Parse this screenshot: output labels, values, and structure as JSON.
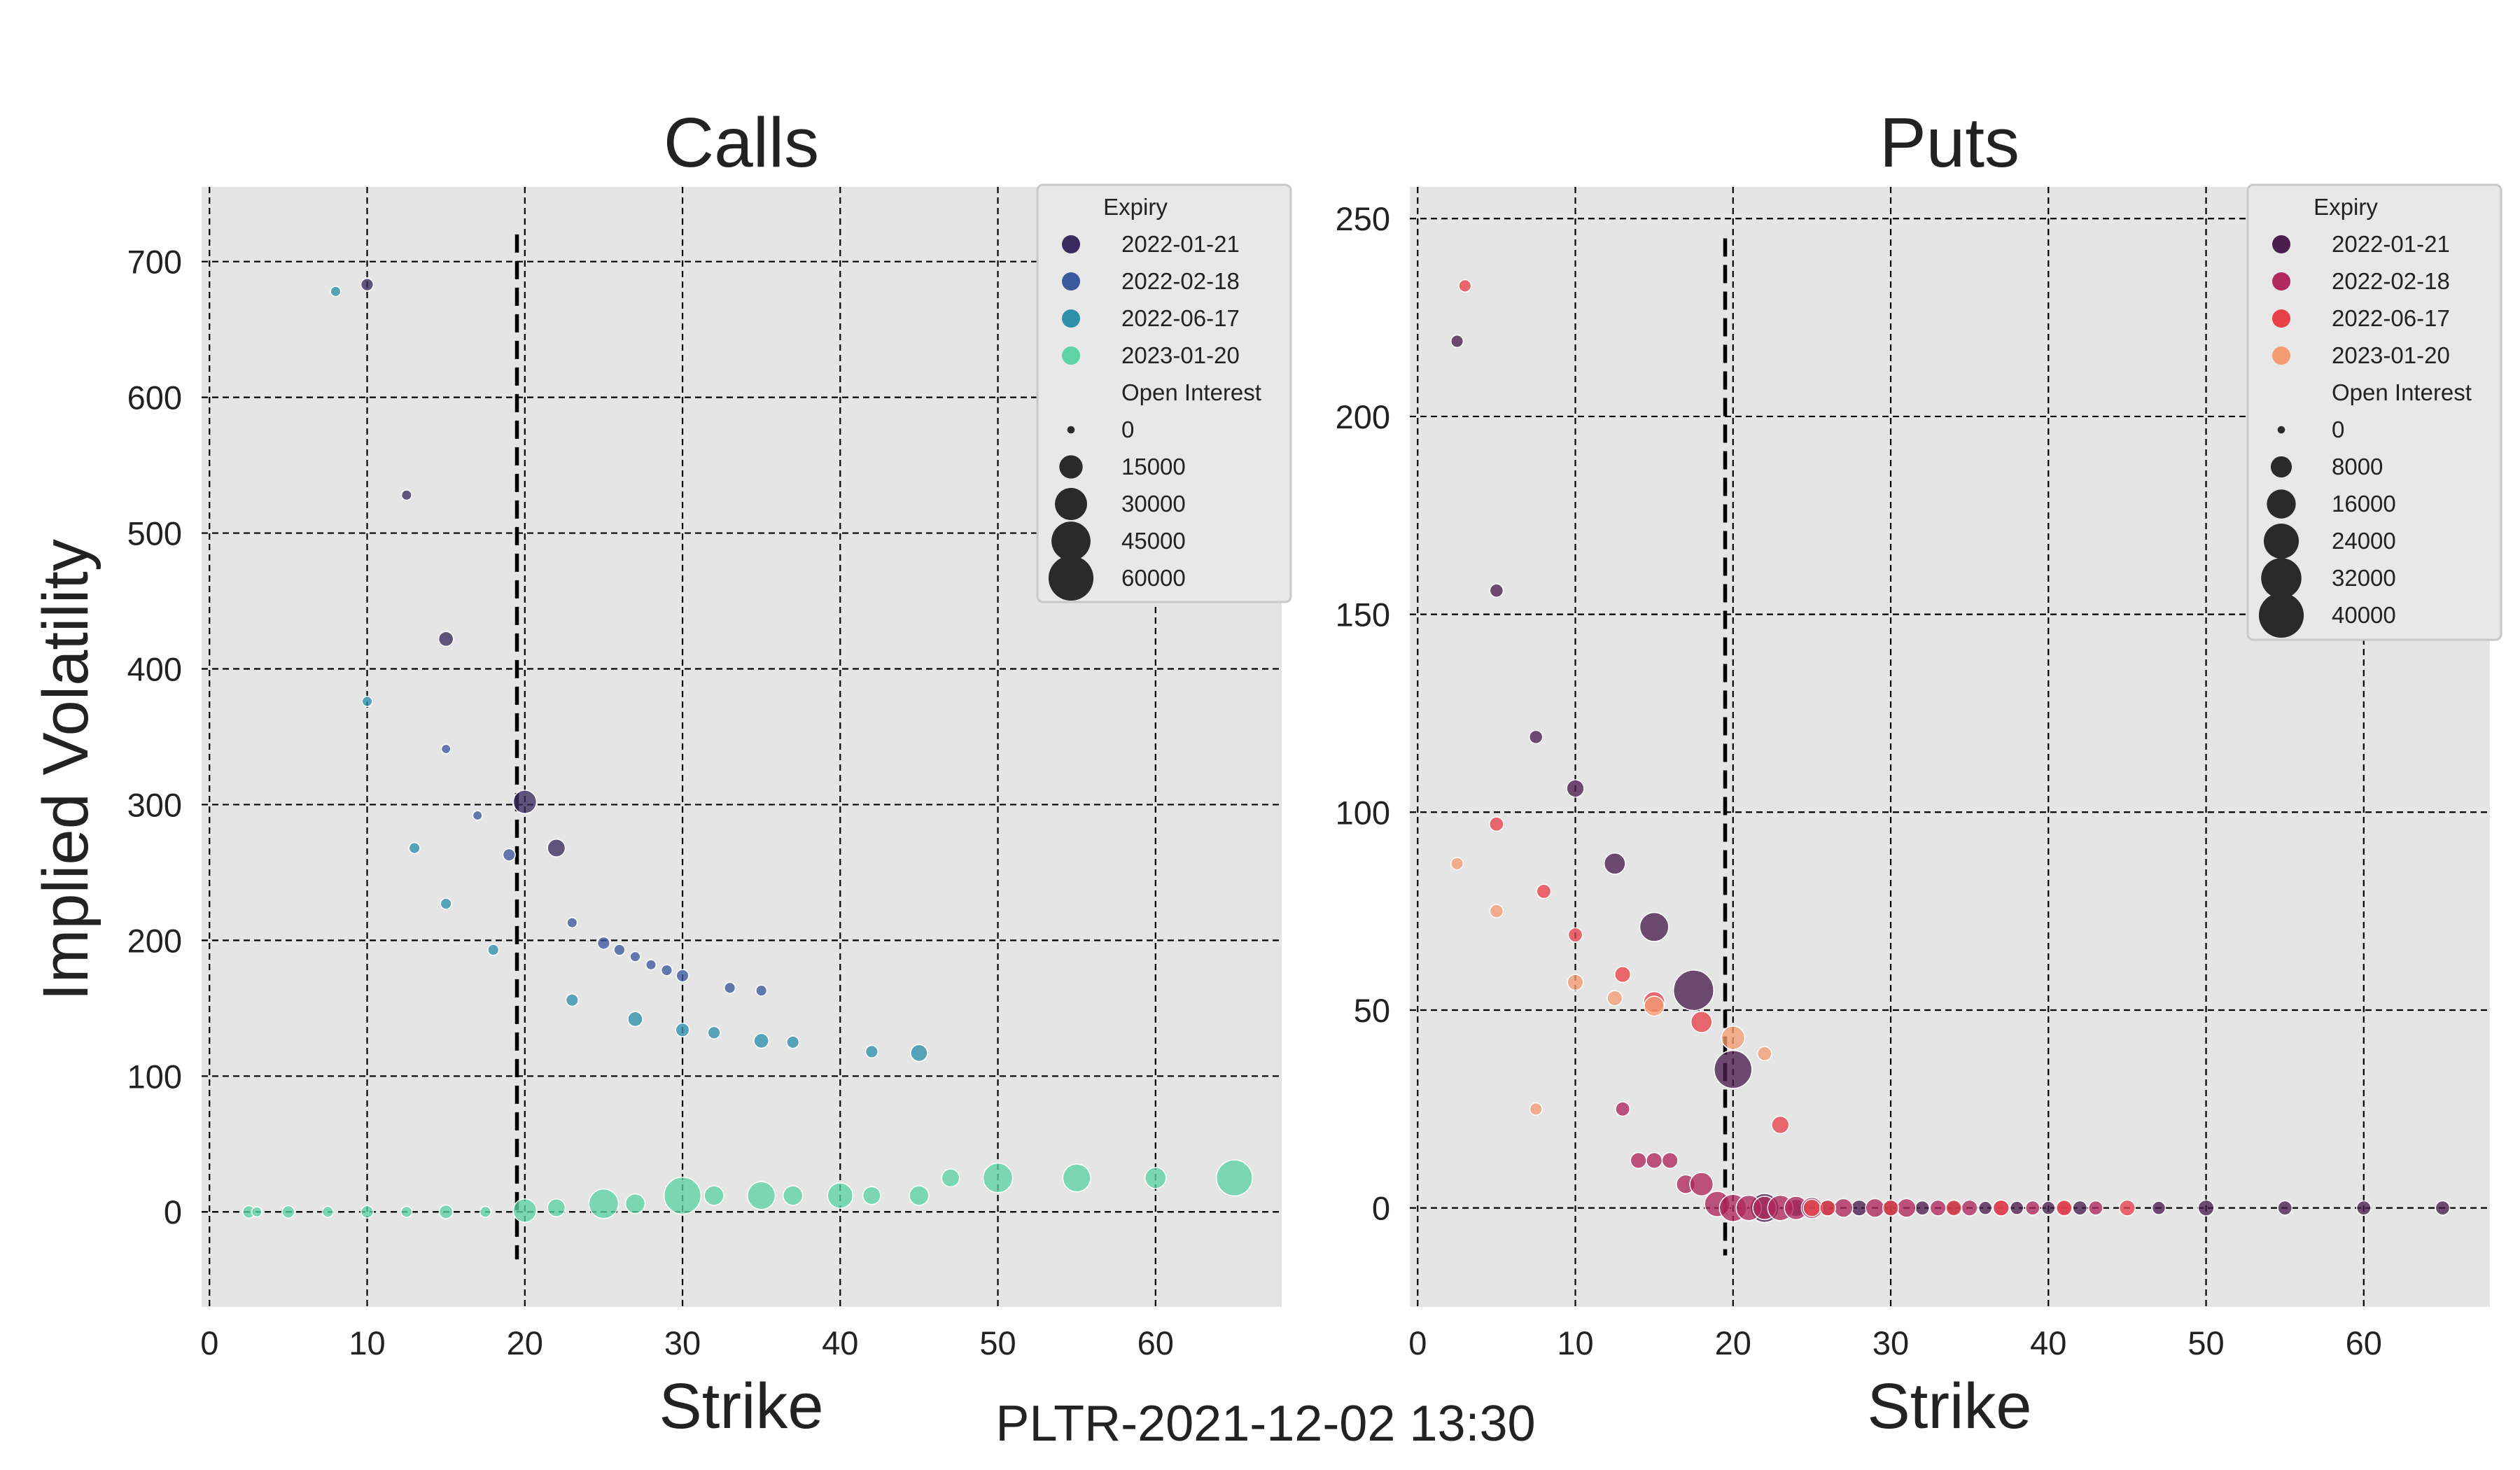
{
  "figure": {
    "suptitle": "PLTR-2021-12-02 13:30",
    "colors": {
      "background": "#e5e5e5",
      "grid": "#000000"
    }
  },
  "chart_data": [
    {
      "type": "scatter",
      "title": "Calls",
      "xlabel": "Strike",
      "ylabel": "Implied Volatility",
      "xlim": [
        -0.5,
        68
      ],
      "ylim": [
        -70,
        755
      ],
      "xticks": [
        0,
        10,
        20,
        30,
        40,
        50,
        60
      ],
      "yticks": [
        0,
        100,
        200,
        300,
        400,
        500,
        600,
        700
      ],
      "grid": true,
      "spot_line": {
        "x": 19.5,
        "y_range": [
          -35,
          720
        ]
      },
      "legend": {
        "placement": "top-right",
        "hue_title": "Expiry",
        "size_title": "Open Interest",
        "size_entries": [
          {
            "label": "0",
            "value": 0
          },
          {
            "label": "15000",
            "value": 15000
          },
          {
            "label": "30000",
            "value": 30000
          },
          {
            "label": "45000",
            "value": 45000
          },
          {
            "label": "60000",
            "value": 60000
          }
        ],
        "size_max": 60000
      },
      "series": [
        {
          "name": "2022-01-21",
          "color": "#3a2b5e",
          "points": [
            [
              10,
              683,
              3000
            ],
            [
              12.5,
              528,
              1500
            ],
            [
              15,
              422,
              5000
            ],
            [
              20,
              302,
              15000
            ],
            [
              22,
              268,
              8000
            ]
          ]
        },
        {
          "name": "2022-02-18",
          "color": "#3b5a9e",
          "points": [
            [
              15,
              341,
              1000
            ],
            [
              17,
              292,
              1000
            ],
            [
              19,
              263,
              3000
            ],
            [
              23,
              213,
              1500
            ],
            [
              25,
              198,
              3000
            ],
            [
              26,
              193,
              2000
            ],
            [
              27,
              188,
              1500
            ],
            [
              28,
              182,
              1500
            ],
            [
              29,
              178,
              2000
            ],
            [
              30,
              174,
              3000
            ],
            [
              33,
              165,
              2000
            ],
            [
              35,
              163,
              2000
            ]
          ]
        },
        {
          "name": "2022-06-17",
          "color": "#2e8faa",
          "points": [
            [
              8,
              678,
              1500
            ],
            [
              10,
              376,
              1500
            ],
            [
              13,
              268,
              2000
            ],
            [
              15,
              227,
              2000
            ],
            [
              18,
              193,
              2000
            ],
            [
              23,
              156,
              3000
            ],
            [
              27,
              142,
              5000
            ],
            [
              30,
              134,
              4000
            ],
            [
              32,
              132,
              3000
            ],
            [
              35,
              126,
              5000
            ],
            [
              37,
              125,
              3000
            ],
            [
              42,
              118,
              3000
            ],
            [
              45,
              117,
              7000
            ]
          ]
        },
        {
          "name": "2023-01-20",
          "color": "#5ed3a5",
          "points": [
            [
              2.5,
              0,
              3000
            ],
            [
              3,
              0,
              1500
            ],
            [
              5,
              0,
              3000
            ],
            [
              7.5,
              0,
              2000
            ],
            [
              10,
              0,
              3000
            ],
            [
              12.5,
              0,
              2000
            ],
            [
              15,
              0,
              4000
            ],
            [
              17.5,
              0,
              2000
            ],
            [
              20,
              1,
              15000
            ],
            [
              22,
              3,
              8000
            ],
            [
              25,
              6,
              25000
            ],
            [
              27,
              6,
              10000
            ],
            [
              30,
              12,
              40000
            ],
            [
              32,
              12,
              10000
            ],
            [
              35,
              12,
              22000
            ],
            [
              37,
              12,
              10000
            ],
            [
              40,
              12,
              18000
            ],
            [
              42,
              12,
              8000
            ],
            [
              45,
              12,
              10000
            ],
            [
              47,
              25,
              8000
            ],
            [
              50,
              25,
              25000
            ],
            [
              55,
              25,
              22000
            ],
            [
              60,
              25,
              12000
            ],
            [
              65,
              25,
              38000
            ]
          ]
        }
      ]
    },
    {
      "type": "scatter",
      "title": "Puts",
      "xlabel": "Strike",
      "ylabel": "",
      "xlim": [
        -0.5,
        68
      ],
      "ylim": [
        -25,
        258
      ],
      "xticks": [
        0,
        10,
        20,
        30,
        40,
        50,
        60
      ],
      "yticks": [
        0,
        50,
        100,
        150,
        200,
        250
      ],
      "grid": true,
      "spot_line": {
        "x": 19.5,
        "y_range": [
          -12,
          245
        ]
      },
      "legend": {
        "placement": "top-right",
        "hue_title": "Expiry",
        "size_title": "Open Interest",
        "size_entries": [
          {
            "label": "0",
            "value": 0
          },
          {
            "label": "8000",
            "value": 8000
          },
          {
            "label": "16000",
            "value": 16000
          },
          {
            "label": "24000",
            "value": 24000
          },
          {
            "label": "32000",
            "value": 32000
          },
          {
            "label": "40000",
            "value": 40000
          }
        ],
        "size_max": 40000
      },
      "series": [
        {
          "name": "2022-01-21",
          "color": "#4a1f4e",
          "points": [
            [
              2.5,
              219,
              2000
            ],
            [
              5,
              156,
              2500
            ],
            [
              7.5,
              119,
              2500
            ],
            [
              10,
              106,
              5000
            ],
            [
              12.5,
              87,
              8000
            ],
            [
              15,
              71,
              16000
            ],
            [
              17.5,
              55,
              32000
            ],
            [
              20,
              35,
              28000
            ],
            [
              22,
              0,
              16000
            ],
            [
              24,
              0,
              5000
            ],
            [
              26,
              0,
              4000
            ],
            [
              28,
              0,
              4000
            ],
            [
              30,
              0,
              4000
            ],
            [
              32,
              0,
              3000
            ],
            [
              34,
              0,
              3000
            ],
            [
              36,
              0,
              2500
            ],
            [
              38,
              0,
              2500
            ],
            [
              40,
              0,
              2500
            ],
            [
              42,
              0,
              3000
            ],
            [
              47,
              0,
              2500
            ],
            [
              50,
              0,
              4000
            ],
            [
              55,
              0,
              3000
            ],
            [
              60,
              0,
              3000
            ],
            [
              65,
              0,
              3000
            ]
          ]
        },
        {
          "name": "2022-02-18",
          "color": "#b0285e",
          "points": [
            [
              13,
              25,
              3000
            ],
            [
              14,
              12,
              4000
            ],
            [
              15,
              12,
              4000
            ],
            [
              16,
              12,
              4000
            ],
            [
              17,
              6,
              6000
            ],
            [
              18,
              6,
              10000
            ],
            [
              19,
              1,
              12000
            ],
            [
              20,
              0,
              14000
            ],
            [
              21,
              0,
              12000
            ],
            [
              22,
              0,
              10000
            ],
            [
              23,
              0,
              12000
            ],
            [
              24,
              0,
              10000
            ],
            [
              25,
              0,
              8000
            ],
            [
              27,
              0,
              6000
            ],
            [
              29,
              0,
              6000
            ],
            [
              31,
              0,
              6000
            ],
            [
              33,
              0,
              4000
            ],
            [
              35,
              0,
              4000
            ],
            [
              37,
              0,
              4000
            ],
            [
              39,
              0,
              3000
            ],
            [
              41,
              0,
              3000
            ],
            [
              43,
              0,
              3000
            ]
          ]
        },
        {
          "name": "2022-06-17",
          "color": "#e8414a",
          "points": [
            [
              3,
              233,
              2000
            ],
            [
              5,
              97,
              3000
            ],
            [
              8,
              80,
              3000
            ],
            [
              10,
              69,
              3000
            ],
            [
              13,
              59,
              4000
            ],
            [
              15,
              52,
              8000
            ],
            [
              18,
              47,
              8000
            ],
            [
              23,
              21,
              5000
            ],
            [
              25,
              0,
              5000
            ],
            [
              26,
              0,
              4000
            ],
            [
              30,
              0,
              4000
            ],
            [
              34,
              0,
              4000
            ],
            [
              37,
              0,
              4000
            ],
            [
              41,
              0,
              4000
            ],
            [
              45,
              0,
              4000
            ]
          ]
        },
        {
          "name": "2023-01-20",
          "color": "#f39c73",
          "points": [
            [
              2.5,
              87,
              2000
            ],
            [
              5,
              75,
              2500
            ],
            [
              7.5,
              25,
              2000
            ],
            [
              10,
              57,
              4000
            ],
            [
              12.5,
              53,
              3500
            ],
            [
              15,
              51,
              7000
            ],
            [
              20,
              43,
              10000
            ],
            [
              22,
              39,
              3000
            ]
          ]
        }
      ]
    }
  ]
}
